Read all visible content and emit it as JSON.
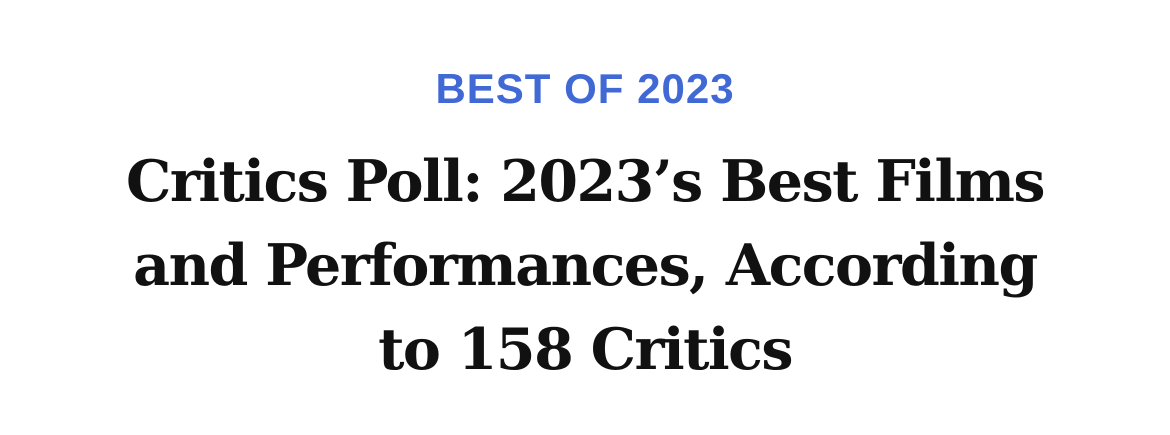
{
  "article_header": {
    "kicker": "BEST OF 2023",
    "headline_lines": [
      "Critics Poll: 2023’s Best Films",
      "and Performances, According",
      "to 158 Critics"
    ],
    "colors": {
      "kicker": "#4169d6",
      "headline": "#111111",
      "background": "#ffffff"
    }
  }
}
